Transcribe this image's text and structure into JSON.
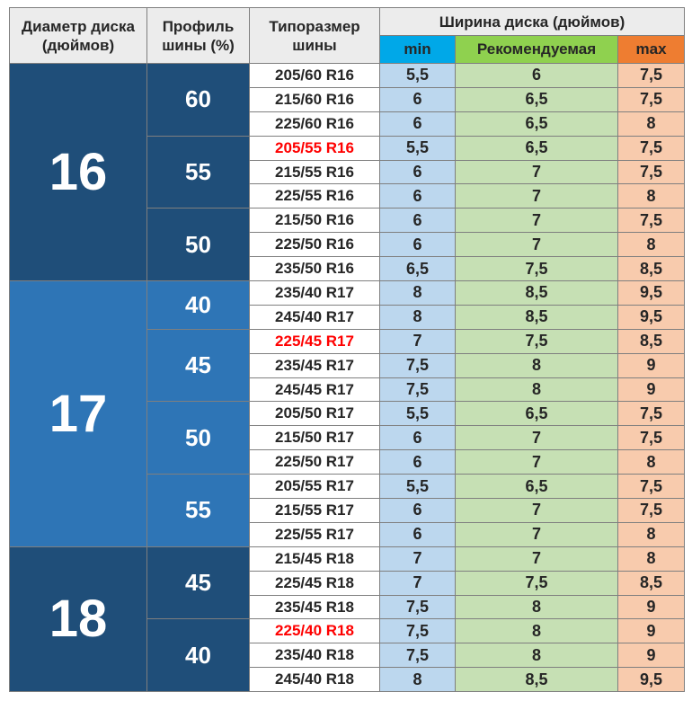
{
  "header": {
    "col_diameter_line1": "Диаметр диска",
    "col_diameter_line2": "(дюймов)",
    "col_profile_line1": "Профиль",
    "col_profile_line2": "шины (%)",
    "col_size_line1": "Типоразмер",
    "col_size_line2": "шины",
    "col_width_main": "Ширина диска",
    "col_width_unit": "(дюймов)",
    "col_min": "min",
    "col_rec": "Рекомендуемая",
    "col_max": "max"
  },
  "colors": {
    "diameter_16": "#1f4e79",
    "diameter_17": "#2e75b6",
    "diameter_18": "#1f4e79",
    "profile_16": "#1f4e79",
    "profile_17": "#2e75b6",
    "profile_18": "#1f4e79",
    "highlight_text": "#ff0000",
    "min_header": "#00a8e8",
    "rec_header": "#8fd14f",
    "max_header": "#ee7d31",
    "min_cell": "#bcd7ee",
    "rec_cell": "#c6e0b4",
    "max_cell": "#f8cbad"
  },
  "chart_data": {
    "type": "table",
    "columns": [
      "Диаметр диска (дюймов)",
      "Профиль шины (%)",
      "Типоразмер шины",
      "min",
      "Рекомендуемая",
      "max"
    ],
    "groups": [
      {
        "diameter": "16",
        "profiles": [
          {
            "profile": "60",
            "rows": [
              {
                "size": "205/60 R16",
                "min": "5,5",
                "rec": "6",
                "max": "7,5",
                "highlight": false
              },
              {
                "size": "215/60 R16",
                "min": "6",
                "rec": "6,5",
                "max": "7,5",
                "highlight": false
              },
              {
                "size": "225/60 R16",
                "min": "6",
                "rec": "6,5",
                "max": "8",
                "highlight": false
              }
            ]
          },
          {
            "profile": "55",
            "rows": [
              {
                "size": "205/55 R16",
                "min": "5,5",
                "rec": "6,5",
                "max": "7,5",
                "highlight": true
              },
              {
                "size": "215/55 R16",
                "min": "6",
                "rec": "7",
                "max": "7,5",
                "highlight": false
              },
              {
                "size": "225/55 R16",
                "min": "6",
                "rec": "7",
                "max": "8",
                "highlight": false
              }
            ]
          },
          {
            "profile": "50",
            "rows": [
              {
                "size": "215/50 R16",
                "min": "6",
                "rec": "7",
                "max": "7,5",
                "highlight": false
              },
              {
                "size": "225/50 R16",
                "min": "6",
                "rec": "7",
                "max": "8",
                "highlight": false
              },
              {
                "size": "235/50 R16",
                "min": "6,5",
                "rec": "7,5",
                "max": "8,5",
                "highlight": false
              }
            ]
          }
        ]
      },
      {
        "diameter": "17",
        "profiles": [
          {
            "profile": "40",
            "rows": [
              {
                "size": "235/40 R17",
                "min": "8",
                "rec": "8,5",
                "max": "9,5",
                "highlight": false
              },
              {
                "size": "245/40 R17",
                "min": "8",
                "rec": "8,5",
                "max": "9,5",
                "highlight": false
              }
            ]
          },
          {
            "profile": "45",
            "rows": [
              {
                "size": "225/45 R17",
                "min": "7",
                "rec": "7,5",
                "max": "8,5",
                "highlight": true
              },
              {
                "size": "235/45 R17",
                "min": "7,5",
                "rec": "8",
                "max": "9",
                "highlight": false
              },
              {
                "size": "245/45 R17",
                "min": "7,5",
                "rec": "8",
                "max": "9",
                "highlight": false
              }
            ]
          },
          {
            "profile": "50",
            "rows": [
              {
                "size": "205/50 R17",
                "min": "5,5",
                "rec": "6,5",
                "max": "7,5",
                "highlight": false
              },
              {
                "size": "215/50 R17",
                "min": "6",
                "rec": "7",
                "max": "7,5",
                "highlight": false
              },
              {
                "size": "225/50 R17",
                "min": "6",
                "rec": "7",
                "max": "8",
                "highlight": false
              }
            ]
          },
          {
            "profile": "55",
            "rows": [
              {
                "size": "205/55 R17",
                "min": "5,5",
                "rec": "6,5",
                "max": "7,5",
                "highlight": false
              },
              {
                "size": "215/55 R17",
                "min": "6",
                "rec": "7",
                "max": "7,5",
                "highlight": false
              },
              {
                "size": "225/55 R17",
                "min": "6",
                "rec": "7",
                "max": "8",
                "highlight": false
              }
            ]
          }
        ]
      },
      {
        "diameter": "18",
        "profiles": [
          {
            "profile": "45",
            "rows": [
              {
                "size": "215/45 R18",
                "min": "7",
                "rec": "7",
                "max": "8",
                "highlight": false
              },
              {
                "size": "225/45 R18",
                "min": "7",
                "rec": "7,5",
                "max": "8,5",
                "highlight": false
              },
              {
                "size": "235/45 R18",
                "min": "7,5",
                "rec": "8",
                "max": "9",
                "highlight": false
              }
            ]
          },
          {
            "profile": "40",
            "rows": [
              {
                "size": "225/40 R18",
                "min": "7,5",
                "rec": "8",
                "max": "9",
                "highlight": true
              },
              {
                "size": "235/40 R18",
                "min": "7,5",
                "rec": "8",
                "max": "9",
                "highlight": false
              },
              {
                "size": "245/40 R18",
                "min": "8",
                "rec": "8,5",
                "max": "9,5",
                "highlight": false
              }
            ]
          }
        ]
      }
    ]
  }
}
